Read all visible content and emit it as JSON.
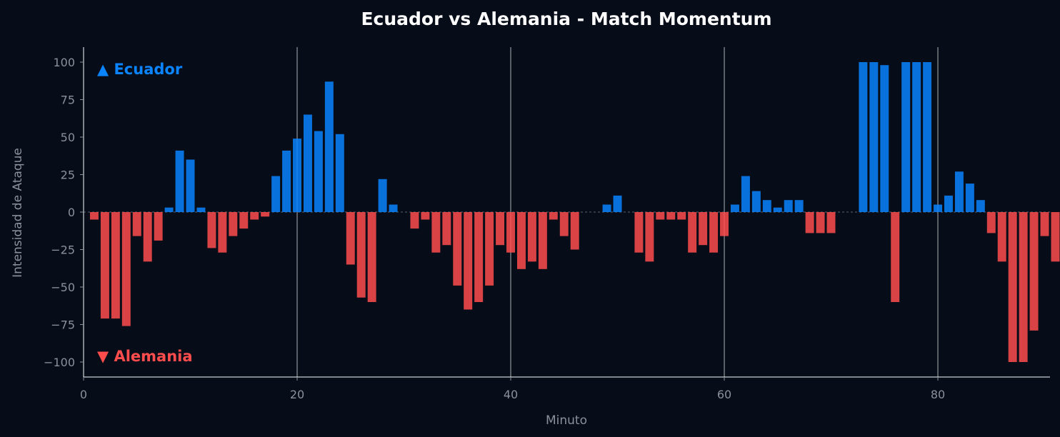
{
  "chart_data": {
    "type": "bar",
    "title": "Ecuador vs Alemania - Match Momentum",
    "xlabel": "Minuto",
    "ylabel": "Intensidad de Ataque",
    "xlim": [
      0,
      90.5
    ],
    "ylim": [
      -110,
      110
    ],
    "xticks": [
      "0",
      "20",
      "40",
      "60",
      "80"
    ],
    "yticks": [
      "100",
      "75",
      "50",
      "25",
      "0",
      "−25",
      "−50",
      "−75",
      "−100"
    ],
    "reference_lines_x": [
      20,
      40,
      60,
      80
    ],
    "teams": {
      "positive": {
        "label": "▲ Ecuador",
        "color": "#0a84ff"
      },
      "negative": {
        "label": "▼ Alemania",
        "color": "#ff4d4d"
      }
    },
    "x": [
      1,
      2,
      3,
      4,
      5,
      6,
      7,
      8,
      9,
      10,
      11,
      12,
      13,
      14,
      15,
      16,
      17,
      18,
      19,
      20,
      21,
      22,
      23,
      24,
      25,
      26,
      27,
      28,
      29,
      30,
      31,
      32,
      33,
      34,
      35,
      36,
      37,
      38,
      39,
      40,
      41,
      42,
      43,
      44,
      45,
      46,
      47,
      48,
      49,
      50,
      51,
      52,
      53,
      54,
      55,
      56,
      57,
      58,
      59,
      60,
      61,
      62,
      63,
      64,
      65,
      66,
      67,
      68,
      69,
      70,
      71,
      72,
      73,
      74,
      75,
      76,
      77,
      78,
      79,
      80,
      81,
      82,
      83,
      84,
      85,
      86,
      87,
      88,
      89,
      90,
      91
    ],
    "values": [
      -5,
      -71,
      -71,
      -76,
      -16,
      -33,
      -19,
      3,
      41,
      35,
      3,
      -24,
      -27,
      -16,
      -11,
      -5,
      -3,
      24,
      41,
      49,
      65,
      54,
      87,
      52,
      -35,
      -57,
      -60,
      22,
      5,
      0,
      -11,
      -5,
      -27,
      -22,
      -49,
      -65,
      -60,
      -49,
      -22,
      -27,
      -38,
      -33,
      -38,
      -5,
      -16,
      -25,
      0,
      0,
      5,
      11,
      0,
      -27,
      -33,
      -5,
      -5,
      -5,
      -27,
      -22,
      -27,
      -16,
      5,
      24,
      14,
      8,
      3,
      8,
      8,
      -14,
      -14,
      -14,
      0,
      0,
      100,
      100,
      98,
      -60,
      100,
      100,
      100,
      5,
      11,
      27,
      19,
      8,
      -14,
      -33,
      -100,
      -100,
      -79,
      -16,
      -33
    ]
  }
}
